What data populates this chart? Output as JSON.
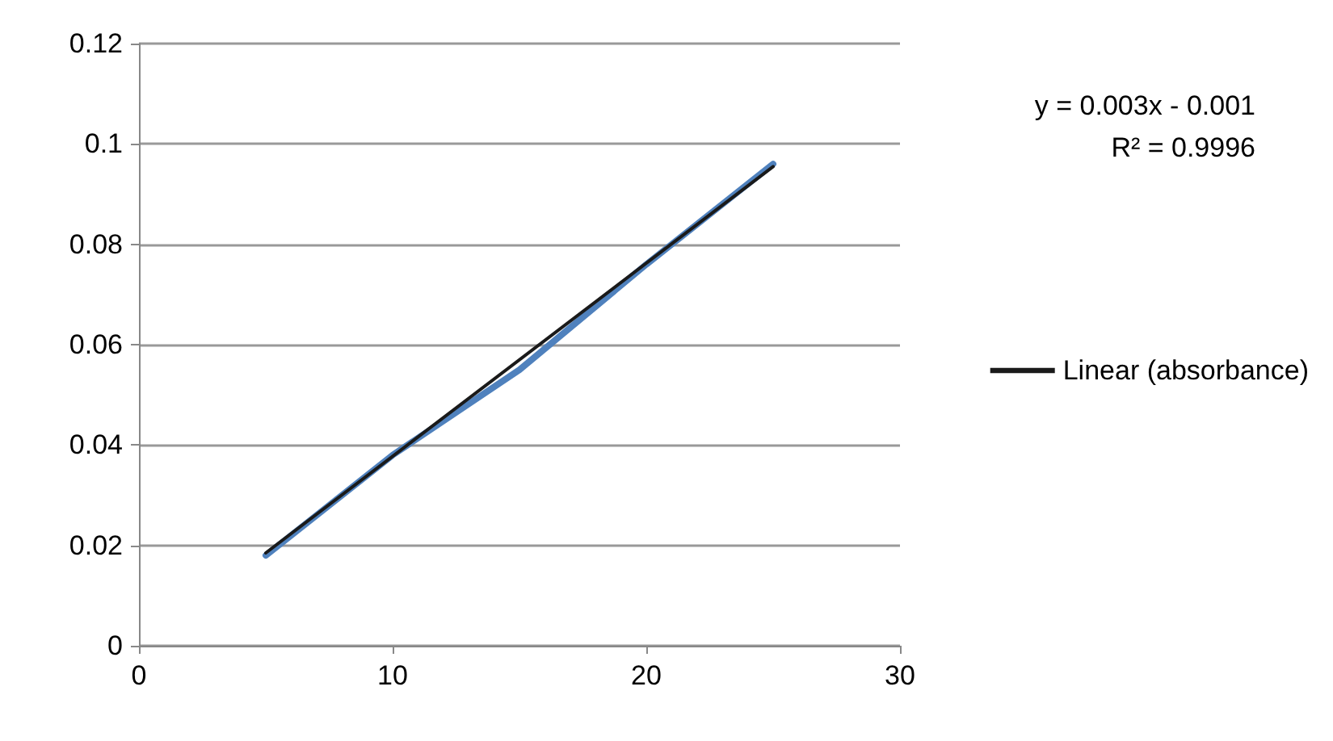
{
  "chart_data": {
    "type": "line",
    "xlim": [
      0,
      30
    ],
    "xticks": [
      0,
      10,
      20,
      30
    ],
    "ylim": [
      0,
      0.12
    ],
    "yticks": [
      0,
      0.02,
      0.04,
      0.06,
      0.08,
      0.1,
      0.12
    ],
    "grid": "y",
    "legend": "right",
    "marker": "none",
    "annotations": [
      "y = 0.003x - 0.001",
      "R² = 0.9996"
    ],
    "series": [
      {
        "color": "#4f81bd",
        "x": [
          5,
          10,
          15,
          20,
          25
        ],
        "values": [
          0.018,
          0.038,
          0.055,
          0.076,
          0.096
        ]
      },
      {
        "name": "Linear (absorbance)",
        "color": "#1a1a1a",
        "x": [
          5,
          25
        ],
        "values": [
          0.0185,
          0.0955
        ]
      }
    ]
  }
}
